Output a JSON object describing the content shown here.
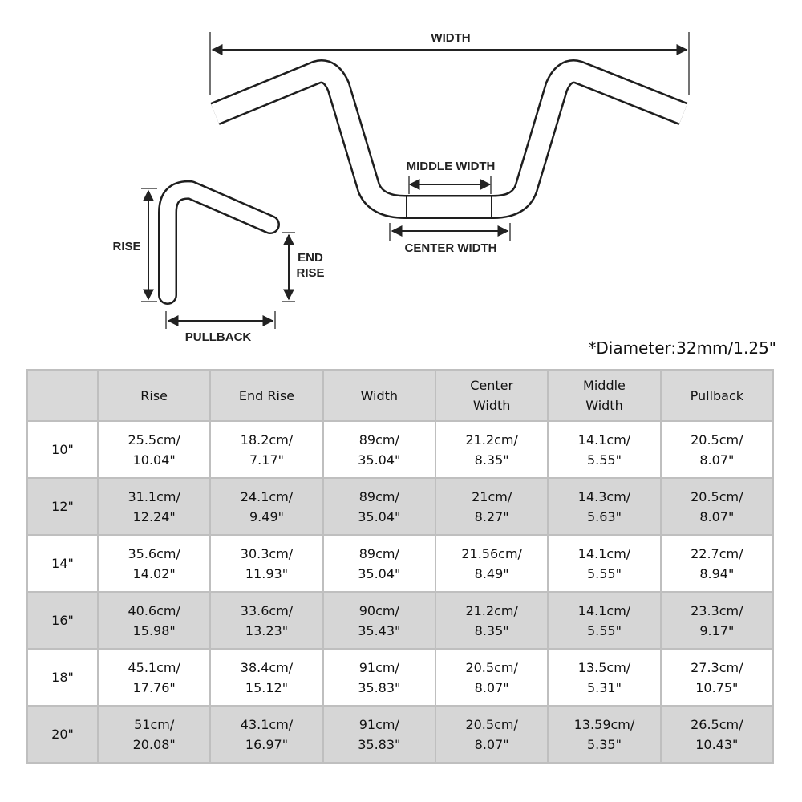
{
  "diagram": {
    "labels": {
      "width": "WIDTH",
      "middle_width": "MIDDLE WIDTH",
      "center_width": "CENTER WIDTH",
      "rise": "RISE",
      "end_rise_line1": "END",
      "end_rise_line2": "RISE",
      "pullback": "PULLBACK"
    }
  },
  "diameter_note": "*Diameter:32mm/1.25\"",
  "table": {
    "headers": [
      {
        "line1": "",
        "line2": ""
      },
      {
        "line1": "Rise",
        "line2": ""
      },
      {
        "line1": "End Rise",
        "line2": ""
      },
      {
        "line1": "Width",
        "line2": ""
      },
      {
        "line1": "Center",
        "line2": "Width"
      },
      {
        "line1": "Middle",
        "line2": "Width"
      },
      {
        "line1": "Pullback",
        "line2": ""
      }
    ],
    "rows": [
      {
        "size": "10\"",
        "cells": [
          [
            "25.5cm/",
            "10.04\""
          ],
          [
            "18.2cm/",
            "7.17\""
          ],
          [
            "89cm/",
            "35.04\""
          ],
          [
            "21.2cm/",
            "8.35\""
          ],
          [
            "14.1cm/",
            "5.55\""
          ],
          [
            "20.5cm/",
            "8.07\""
          ]
        ]
      },
      {
        "size": "12\"",
        "cells": [
          [
            "31.1cm/",
            "12.24\""
          ],
          [
            "24.1cm/",
            "9.49\""
          ],
          [
            "89cm/",
            "35.04\""
          ],
          [
            "21cm/",
            "8.27\""
          ],
          [
            "14.3cm/",
            "5.63\""
          ],
          [
            "20.5cm/",
            "8.07\""
          ]
        ]
      },
      {
        "size": "14\"",
        "cells": [
          [
            "35.6cm/",
            "14.02\""
          ],
          [
            "30.3cm/",
            "11.93\""
          ],
          [
            "89cm/",
            "35.04\""
          ],
          [
            "21.56cm/",
            "8.49\""
          ],
          [
            "14.1cm/",
            "5.55\""
          ],
          [
            "22.7cm/",
            "8.94\""
          ]
        ]
      },
      {
        "size": "16\"",
        "cells": [
          [
            "40.6cm/",
            "15.98\""
          ],
          [
            "33.6cm/",
            "13.23\""
          ],
          [
            "90cm/",
            "35.43\""
          ],
          [
            "21.2cm/",
            "8.35\""
          ],
          [
            "14.1cm/",
            "5.55\""
          ],
          [
            "23.3cm/",
            "9.17\""
          ]
        ]
      },
      {
        "size": "18\"",
        "cells": [
          [
            "45.1cm/",
            "17.76\""
          ],
          [
            "38.4cm/",
            "15.12\""
          ],
          [
            "91cm/",
            "35.83\""
          ],
          [
            "20.5cm/",
            "8.07\""
          ],
          [
            "13.5cm/",
            "5.31\""
          ],
          [
            "27.3cm/",
            "10.75\""
          ]
        ]
      },
      {
        "size": "20\"",
        "cells": [
          [
            "51cm/",
            "20.08\""
          ],
          [
            "43.1cm/",
            "16.97\""
          ],
          [
            "91cm/",
            "35.83\""
          ],
          [
            "20.5cm/",
            "8.07\""
          ],
          [
            "13.59cm/",
            "5.35\""
          ],
          [
            "26.5cm/",
            "10.43\""
          ]
        ]
      }
    ]
  }
}
